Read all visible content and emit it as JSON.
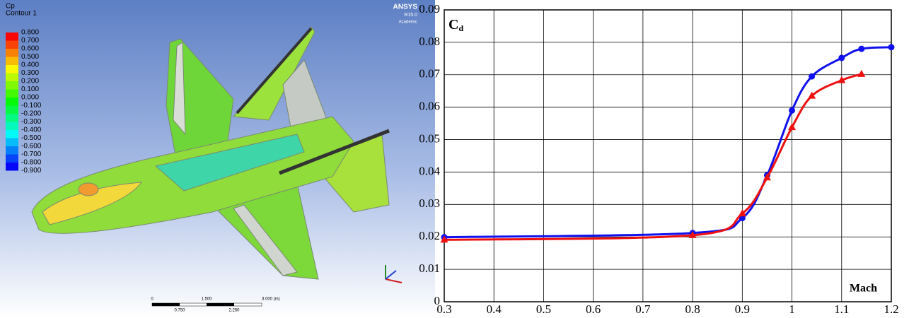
{
  "contour": {
    "title": "Cp",
    "subtitle": "Contour 1",
    "legend_labels": [
      "0.800",
      "0.700",
      "0.600",
      "0.500",
      "0.400",
      "0.300",
      "0.200",
      "0.100",
      "0.000",
      "-0.100",
      "-0.200",
      "-0.300",
      "-0.400",
      "-0.500",
      "-0.600",
      "-0.700",
      "-0.800",
      "-0.900"
    ],
    "logo": "ANSYS",
    "version": "R15.0",
    "edition": "Academic",
    "scale_top": [
      "0",
      "1.500",
      "3.000 (m)"
    ],
    "scale_bottom": [
      "0.750",
      "2.250"
    ]
  },
  "chart_data": {
    "type": "line",
    "ylabel": "C",
    "ylabel_subscript": "d",
    "xlabel": "Mach",
    "xlim": [
      0.3,
      1.2
    ],
    "ylim": [
      0,
      0.09
    ],
    "xticks": [
      0.3,
      0.4,
      0.5,
      0.6,
      0.7,
      0.8,
      0.9,
      1,
      1.1,
      1.2
    ],
    "yticks": [
      0,
      0.01,
      0.02,
      0.03,
      0.04,
      0.05,
      0.06,
      0.07,
      0.08,
      0.09
    ],
    "grid": true,
    "series": [
      {
        "color": "#1010ee",
        "marker": "circle",
        "x": [
          0.3,
          0.8,
          0.9,
          0.95,
          1.0,
          1.04,
          1.1,
          1.14,
          1.2
        ],
        "values": [
          0.0199,
          0.0212,
          0.0258,
          0.039,
          0.059,
          0.0695,
          0.0752,
          0.078,
          0.0785
        ]
      },
      {
        "color": "#ee1010",
        "marker": "triangle",
        "x": [
          0.3,
          0.8,
          0.9,
          0.95,
          1.0,
          1.04,
          1.1,
          1.14
        ],
        "values": [
          0.0191,
          0.0205,
          0.0272,
          0.0383,
          0.0538,
          0.0635,
          0.0683,
          0.0702
        ]
      }
    ]
  }
}
